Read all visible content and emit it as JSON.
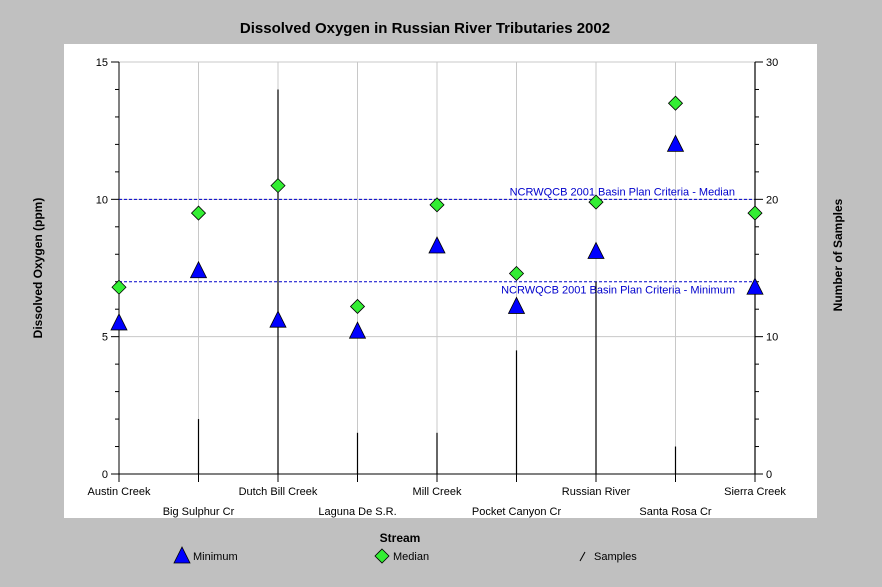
{
  "colors": {
    "background": "#c0c0c0",
    "plot_background": "#ffffff",
    "grid": "#c8c8c8",
    "criteria_line": "#0000cc",
    "minimum_marker": "#0000ff",
    "median_marker": "#33ee33",
    "sample_bar": "#000000"
  },
  "chart_data": {
    "type": "scatter",
    "title": "Dissolved Oxygen in Russian River Tributaries 2002",
    "xlabel": "Stream",
    "ylabel": "Dissolved Oxygen (ppm)",
    "y2label": "Number of Samples",
    "ylim": [
      0,
      15
    ],
    "y2lim": [
      0,
      30
    ],
    "yticks": [
      "0",
      "5",
      "10",
      "15"
    ],
    "y2ticks": [
      "0",
      "10",
      "20",
      "30"
    ],
    "grid": true,
    "legend_position": "bottom",
    "categories": [
      "Austin Creek",
      "Big Sulphur Cr",
      "Dutch Bill Creek",
      "Laguna De S.R.",
      "Mill Creek",
      "Pocket Canyon Cr",
      "Russian River",
      "Santa Rosa Cr",
      "Sierra Creek"
    ],
    "series": [
      {
        "name": "Minimum",
        "marker": "triangle",
        "axis": "left",
        "values": [
          5.5,
          7.4,
          5.6,
          5.2,
          8.3,
          6.1,
          8.1,
          12.0,
          6.8
        ]
      },
      {
        "name": "Median",
        "marker": "diamond",
        "axis": "left",
        "values": [
          6.8,
          9.5,
          10.5,
          6.1,
          9.8,
          7.3,
          9.9,
          13.5,
          9.5
        ]
      },
      {
        "name": "Samples",
        "marker": "bar",
        "axis": "right",
        "values": [
          0,
          4,
          28,
          3,
          3,
          9,
          14,
          2,
          30
        ]
      }
    ],
    "reference_lines": [
      {
        "label": "NCRWQCB 2001 Basin Plan Criteria - Median",
        "value": 10
      },
      {
        "label": "NCRWQCB 2001 Basin Plan Criteria - Minimum",
        "value": 7
      }
    ]
  }
}
